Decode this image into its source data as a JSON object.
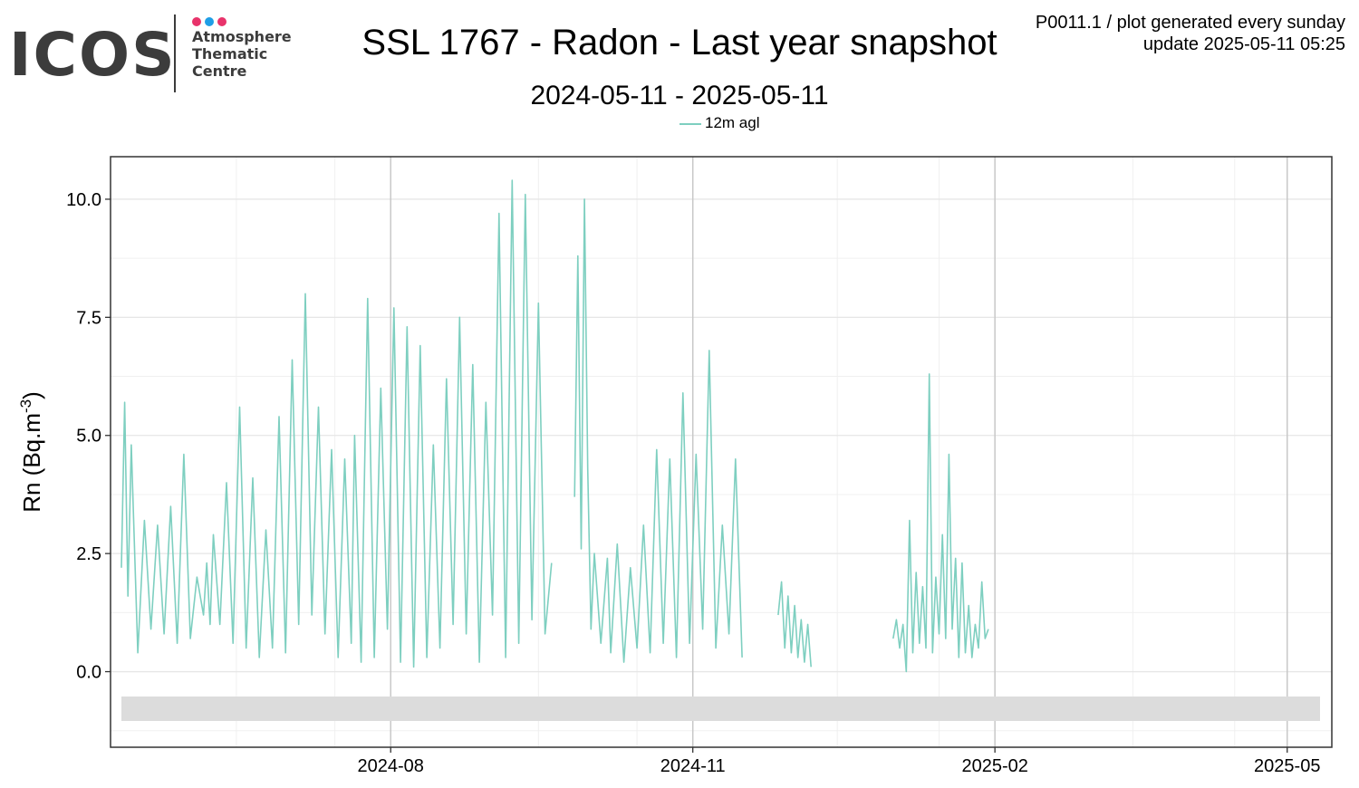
{
  "logo": {
    "text": "ICOS",
    "line1": "Atmosphere",
    "line2": "Thematic",
    "line3": "Centre",
    "dot_colors": [
      "#e8336b",
      "#1f9ee6",
      "#e8336b"
    ]
  },
  "header": {
    "title": "SSL 1767 - Radon - Last year snapshot",
    "subtitle": "2024-05-11 - 2025-05-11",
    "meta_line1": "P0011.1 / plot generated every sunday",
    "meta_line2": "update  2025-05-11 05:25"
  },
  "chart_data": {
    "type": "line",
    "title": "SSL 1767 - Radon - Last year snapshot",
    "ylabel_main": "Rn (Bq.m",
    "ylabel_exp": "-3",
    "ylabel_close": ")",
    "xlim": [
      "2024-05-11",
      "2025-05-11"
    ],
    "ylim": [
      -1.6,
      10.9
    ],
    "yticks": [
      0.0,
      2.5,
      5.0,
      7.5,
      10.0
    ],
    "ytick_labels": [
      "0.0",
      "2.5",
      "5.0",
      "7.5",
      "10.0"
    ],
    "xticks": [
      "2024-08-01",
      "2024-11-01",
      "2025-02-01",
      "2025-05-01"
    ],
    "xtick_labels": [
      "2024-08",
      "2024-11",
      "2025-02",
      "2025-05"
    ],
    "minor_xticks": [
      "2024-06-15",
      "2024-07-15",
      "2024-09-15",
      "2024-10-15",
      "2024-12-15",
      "2025-01-15",
      "2025-03-15",
      "2025-04-15"
    ],
    "grid": true,
    "legend_position": "top",
    "series": [
      {
        "name": "12m agl",
        "color": "#7ecfc0",
        "segments": [
          {
            "x": [
              "2024-05-11",
              "2024-05-12",
              "2024-05-13",
              "2024-05-14",
              "2024-05-16",
              "2024-05-18",
              "2024-05-20",
              "2024-05-22",
              "2024-05-24",
              "2024-05-26",
              "2024-05-28",
              "2024-05-30",
              "2024-06-01",
              "2024-06-03",
              "2024-06-05",
              "2024-06-06",
              "2024-06-07",
              "2024-06-08",
              "2024-06-10",
              "2024-06-12",
              "2024-06-14",
              "2024-06-16",
              "2024-06-18",
              "2024-06-20",
              "2024-06-22",
              "2024-06-24",
              "2024-06-26",
              "2024-06-28",
              "2024-06-30",
              "2024-07-02",
              "2024-07-04",
              "2024-07-06",
              "2024-07-08",
              "2024-07-10",
              "2024-07-12",
              "2024-07-14",
              "2024-07-16",
              "2024-07-18",
              "2024-07-20",
              "2024-07-21",
              "2024-07-23",
              "2024-07-25",
              "2024-07-27",
              "2024-07-29",
              "2024-07-31",
              "2024-08-02",
              "2024-08-04",
              "2024-08-06",
              "2024-08-08",
              "2024-08-10",
              "2024-08-12",
              "2024-08-14",
              "2024-08-16",
              "2024-08-18",
              "2024-08-20",
              "2024-08-22",
              "2024-08-24",
              "2024-08-26",
              "2024-08-28",
              "2024-08-30",
              "2024-09-01",
              "2024-09-03",
              "2024-09-05",
              "2024-09-07",
              "2024-09-09",
              "2024-09-11",
              "2024-09-13",
              "2024-09-15",
              "2024-09-17",
              "2024-09-19"
            ],
            "y": [
              2.2,
              5.7,
              1.6,
              4.8,
              0.4,
              3.2,
              0.9,
              3.1,
              0.8,
              3.5,
              0.6,
              4.6,
              0.7,
              2.0,
              1.2,
              2.3,
              1.0,
              2.9,
              1.0,
              4.0,
              0.6,
              5.6,
              0.5,
              4.1,
              0.3,
              3.0,
              0.5,
              5.4,
              0.4,
              6.6,
              1.0,
              8.0,
              1.2,
              5.6,
              0.8,
              4.7,
              0.3,
              4.5,
              0.6,
              5.0,
              0.2,
              7.9,
              0.3,
              6.0,
              0.9,
              7.7,
              0.2,
              7.3,
              0.1,
              6.9,
              0.3,
              4.8,
              0.5,
              6.2,
              1.0,
              7.5,
              0.8,
              6.5,
              0.2,
              5.7,
              1.2,
              9.7,
              0.3,
              10.4,
              0.6,
              10.1,
              1.1,
              7.8,
              0.8,
              2.3
            ]
          },
          {
            "x": [
              "2024-09-26",
              "2024-09-27",
              "2024-09-28",
              "2024-09-29",
              "2024-09-30",
              "2024-10-01",
              "2024-10-02",
              "2024-10-04",
              "2024-10-06",
              "2024-10-07",
              "2024-10-09",
              "2024-10-11",
              "2024-10-13",
              "2024-10-15",
              "2024-10-17",
              "2024-10-19",
              "2024-10-21",
              "2024-10-23",
              "2024-10-25",
              "2024-10-27",
              "2024-10-29",
              "2024-10-31",
              "2024-11-02",
              "2024-11-04",
              "2024-11-06",
              "2024-11-08",
              "2024-11-10",
              "2024-11-12",
              "2024-11-14",
              "2024-11-16"
            ],
            "y": [
              3.7,
              8.8,
              2.6,
              10.0,
              4.3,
              0.9,
              2.5,
              0.6,
              2.4,
              0.4,
              2.7,
              0.2,
              2.2,
              0.5,
              3.1,
              0.4,
              4.7,
              0.6,
              4.5,
              0.3,
              5.9,
              0.6,
              4.6,
              0.9,
              6.8,
              0.5,
              3.1,
              0.8,
              4.5,
              0.3
            ]
          },
          {
            "x": [
              "2024-11-27",
              "2024-11-28",
              "2024-11-29",
              "2024-11-30",
              "2024-12-01",
              "2024-12-02",
              "2024-12-03",
              "2024-12-04",
              "2024-12-05",
              "2024-12-06",
              "2024-12-07"
            ],
            "y": [
              1.2,
              1.9,
              0.5,
              1.6,
              0.4,
              1.4,
              0.3,
              1.1,
              0.2,
              1.0,
              0.1
            ]
          },
          {
            "x": [
              "2025-01-01",
              "2025-01-02",
              "2025-01-03",
              "2025-01-04",
              "2025-01-05",
              "2025-01-06",
              "2025-01-07",
              "2025-01-08",
              "2025-01-09",
              "2025-01-10",
              "2025-01-11",
              "2025-01-12",
              "2025-01-13",
              "2025-01-14",
              "2025-01-15",
              "2025-01-16",
              "2025-01-17",
              "2025-01-18",
              "2025-01-19",
              "2025-01-20",
              "2025-01-21",
              "2025-01-22",
              "2025-01-23",
              "2025-01-24",
              "2025-01-25",
              "2025-01-26",
              "2025-01-27",
              "2025-01-28",
              "2025-01-29",
              "2025-01-30"
            ],
            "y": [
              0.7,
              1.1,
              0.5,
              1.0,
              0.0,
              3.2,
              0.4,
              2.1,
              0.6,
              1.8,
              0.5,
              6.3,
              0.4,
              2.0,
              0.8,
              2.9,
              0.7,
              4.6,
              0.9,
              2.4,
              0.3,
              2.3,
              0.4,
              1.4,
              0.3,
              1.0,
              0.5,
              1.9,
              0.7,
              0.9
            ]
          }
        ]
      }
    ]
  }
}
